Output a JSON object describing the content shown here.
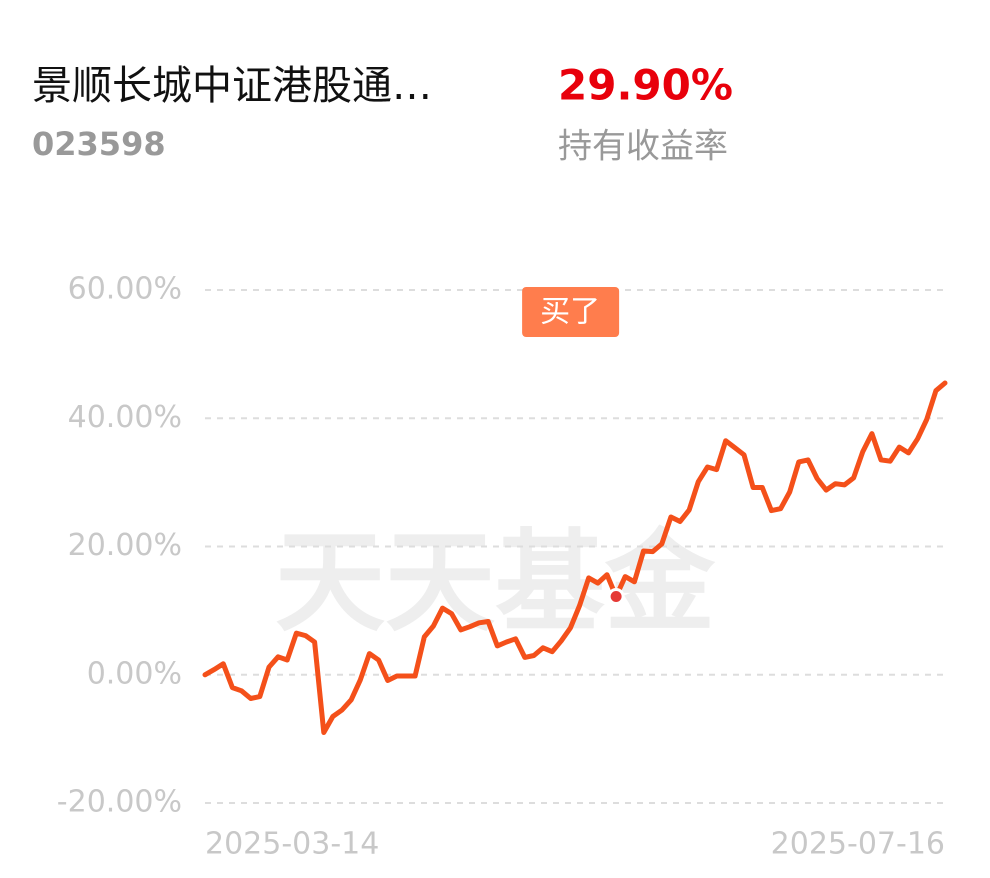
{
  "header": {
    "title": "景顺长城中证港股通…",
    "code": "023598",
    "return": "29.90%",
    "return_label": "持有收益率"
  },
  "chart_data": {
    "type": "line",
    "watermark": "天天基金",
    "color": "#f4501a",
    "categories": [
      "2025-03-14",
      null,
      null,
      null,
      null,
      null,
      null,
      null,
      null,
      null,
      null,
      null,
      null,
      null,
      null,
      null,
      null,
      null,
      null,
      null,
      null,
      null,
      null,
      null,
      null,
      null,
      null,
      null,
      null,
      null,
      null,
      null,
      null,
      null,
      null,
      null,
      null,
      null,
      null,
      null,
      null,
      null,
      null,
      null,
      null,
      null,
      null,
      null,
      null,
      null,
      null,
      null,
      null,
      null,
      null,
      null,
      null,
      null,
      null,
      null,
      null,
      null,
      null,
      null,
      null,
      null,
      null,
      null,
      null,
      null,
      null,
      null,
      null,
      null,
      null,
      null,
      null,
      null,
      null,
      null,
      null,
      "2025-07-16"
    ],
    "values": [
      0,
      0.8,
      1.7,
      -2.0,
      -2.5,
      -3.7,
      -3.4,
      1.2,
      2.8,
      2.3,
      6.5,
      6.1,
      5.1,
      -9.0,
      -6.5,
      -5.5,
      -3.9,
      -0.8,
      3.3,
      2.3,
      -0.9,
      -0.2,
      -0.2,
      -0.2,
      5.9,
      7.6,
      10.4,
      9.5,
      7.0,
      7.5,
      8.1,
      8.3,
      4.5,
      5.1,
      5.6,
      2.7,
      3.0,
      4.2,
      3.6,
      5.3,
      7.3,
      10.8,
      15.1,
      14.3,
      15.6,
      12.2,
      15.3,
      14.5,
      19.3,
      19.2,
      20.4,
      24.6,
      23.9,
      25.7,
      30.1,
      32.4,
      32.0,
      36.5,
      35.4,
      34.3,
      29.2,
      29.2,
      25.6,
      25.9,
      28.5,
      33.2,
      33.5,
      30.6,
      28.8,
      29.8,
      29.6,
      30.7,
      34.8,
      37.6,
      33.5,
      33.3,
      35.5,
      34.6,
      36.8,
      39.8,
      44.3,
      45.5
    ],
    "ylim": [
      -20,
      60
    ],
    "yticks": [
      {
        "value": -20,
        "label": "-20.00%"
      },
      {
        "value": 0,
        "label": "0.00%"
      },
      {
        "value": 20,
        "label": "20.00%"
      },
      {
        "value": 40,
        "label": "40.00%"
      },
      {
        "value": 60,
        "label": "60.00%"
      }
    ],
    "grid": true,
    "annotations": [
      {
        "text": "买了",
        "index": 45
      }
    ]
  }
}
